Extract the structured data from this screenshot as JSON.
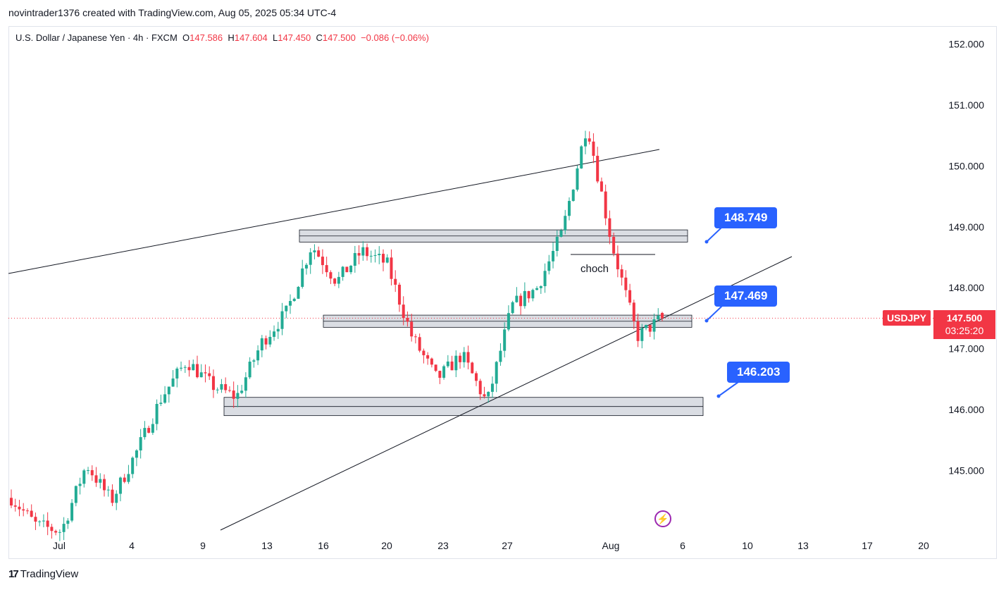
{
  "header": {
    "credit": "novintrader1376 created with TradingView.com, Aug 05, 2025 05:34 UTC-4"
  },
  "legend": {
    "instrument": "U.S. Dollar / Japanese Yen · 4h · FXCM",
    "o_label": "O",
    "o_value": "147.586",
    "h_label": "H",
    "h_value": "147.604",
    "l_label": "L",
    "l_value": "147.450",
    "c_label": "C",
    "c_value": "147.500",
    "change": "−0.086 (−0.06%)"
  },
  "price_badge": {
    "symbol": "USDJPY",
    "price": "147.500",
    "timer": "03:25:20"
  },
  "callouts": {
    "upper": "148.749",
    "middle": "147.469",
    "lower": "146.203"
  },
  "annotation": {
    "choch": "choch"
  },
  "footer": {
    "logo_mark": "17",
    "logo_text": "TradingView"
  },
  "colors": {
    "up": "#22ab94",
    "down": "#f23645",
    "callout": "#2962ff",
    "zone": "#d1d4dc"
  },
  "chart_data": {
    "type": "candlestick",
    "title": "U.S. Dollar / Japanese Yen · 4h · FXCM",
    "y_axis": {
      "position": "right",
      "ticks": [
        145.0,
        146.0,
        147.0,
        148.0,
        149.0,
        150.0,
        151.0,
        152.0
      ],
      "tick_labels": [
        "145.000",
        "146.000",
        "147.000",
        "148.000",
        "149.000",
        "150.000",
        "151.000",
        "152.000"
      ]
    },
    "x_axis": {
      "ticks": [
        "Jul",
        "4",
        "9",
        "13",
        "16",
        "20",
        "23",
        "27",
        "Aug",
        "6",
        "10",
        "13",
        "17",
        "20"
      ]
    },
    "close_path": [
      [
        "Jun 30",
        144.55
      ],
      [
        "Jul 1",
        144.1
      ],
      [
        "Jul 2",
        144.0
      ],
      [
        "Jul 3",
        145.1
      ],
      [
        "Jul 4",
        144.5
      ],
      [
        "Jul 7",
        145.3
      ],
      [
        "Jul 8",
        146.2
      ],
      [
        "Jul 9",
        146.8
      ],
      [
        "Jul 10",
        146.4
      ],
      [
        "Jul 11",
        146.2
      ],
      [
        "Jul 14",
        147.1
      ],
      [
        "Jul 15",
        147.6
      ],
      [
        "Jul 16",
        148.7
      ],
      [
        "Jul 17",
        148.1
      ],
      [
        "Jul 18",
        148.6
      ],
      [
        "Jul 21",
        148.4
      ],
      [
        "Jul 22",
        147.2
      ],
      [
        "Jul 23",
        146.5
      ],
      [
        "Jul 24",
        146.9
      ],
      [
        "Jul 25",
        146.1
      ],
      [
        "Jul 28",
        147.7
      ],
      [
        "Jul 29",
        148.0
      ],
      [
        "Jul 30",
        148.9
      ],
      [
        "Jul 31",
        150.7
      ],
      [
        "Aug 1",
        148.7
      ],
      [
        "Aug 4",
        147.2
      ],
      [
        "Aug 5",
        147.5
      ]
    ],
    "last": {
      "open": 147.586,
      "high": 147.604,
      "low": 147.45,
      "close": 147.5
    },
    "zones": [
      {
        "low": 148.75,
        "high": 148.95
      },
      {
        "low": 147.35,
        "high": 147.55
      },
      {
        "low": 145.9,
        "high": 146.2
      }
    ],
    "levels": [
      148.749,
      147.469,
      146.203
    ],
    "grid": false,
    "legend": "top-left"
  }
}
